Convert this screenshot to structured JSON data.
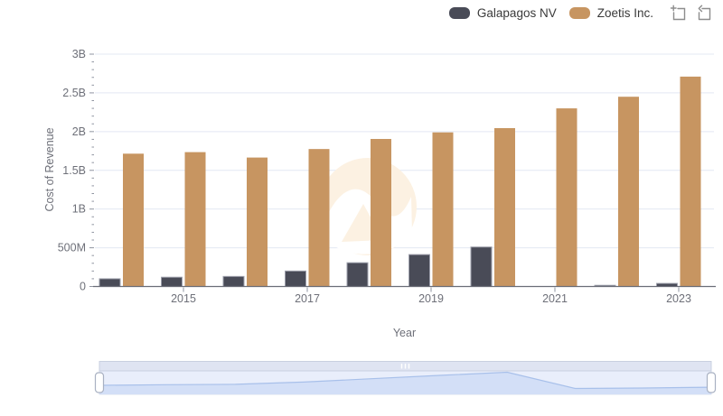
{
  "legend": {
    "items": [
      {
        "label": "Galapagos NV",
        "color": "#494b57"
      },
      {
        "label": "Zoetis Inc.",
        "color": "#c79561"
      }
    ]
  },
  "toolbar": {
    "zoom_selection_icon": "zoom-selection",
    "reset_zoom_icon": "reset-zoom"
  },
  "chart_data": {
    "type": "bar",
    "title": "",
    "xlabel": "Year",
    "ylabel": "Cost of Revenue",
    "categories": [
      2014,
      2015,
      2016,
      2017,
      2018,
      2019,
      2020,
      2021,
      2022,
      2023
    ],
    "series": [
      {
        "name": "Galapagos NV",
        "color": "#494b57",
        "values_millions": [
          100,
          120,
          130,
          200,
          307,
          412,
          510,
          0,
          15,
          40
        ]
      },
      {
        "name": "Zoetis Inc.",
        "color": "#c79561",
        "values_millions": [
          1715,
          1735,
          1665,
          1775,
          1905,
          1990,
          2045,
          2300,
          2450,
          2710
        ]
      }
    ],
    "ylim_millions": [
      0,
      3000
    ],
    "yticks_millions": [
      0,
      500,
      1000,
      1500,
      2000,
      2500,
      3000
    ],
    "ytick_labels": [
      "0",
      "500M",
      "1B",
      "1.5B",
      "2B",
      "2.5B",
      "3B"
    ],
    "ytick_minor_step_millions": 100,
    "xtick_labels": [
      "2015",
      "2017",
      "2019",
      "2021",
      "2023"
    ],
    "grid": true,
    "legend_position": "top-right"
  },
  "navigator": {
    "series_shown": "Galapagos NV",
    "range_start": "2014",
    "range_end": "2023"
  },
  "colors": {
    "grid": "#e3e8f3",
    "axis_line": "#6b6e78",
    "tick": "#8f94a0",
    "tick_label": "#6e7079",
    "bar_border": "#9ea0ac",
    "nav_bg": "#e9eefb",
    "nav_bar": "#dfe4f2",
    "nav_bar_border": "#c9d0e0",
    "nav_area_fill": "#d3dff7",
    "nav_line": "#a8c0ea",
    "nav_handle_border": "#a9b1c2",
    "watermark": "#fcf1e2"
  }
}
